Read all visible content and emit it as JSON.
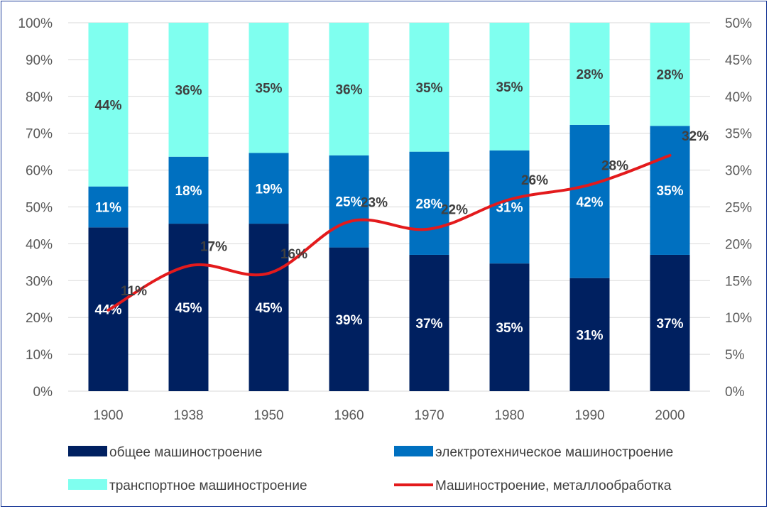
{
  "chart_data": {
    "type": "bar",
    "stacked": true,
    "normalized": true,
    "categories": [
      "1900",
      "1938",
      "1950",
      "1960",
      "1970",
      "1980",
      "1990",
      "2000"
    ],
    "series": [
      {
        "name": "общее машиностроение",
        "color": "#002060",
        "label_color": "#FFFFFF",
        "values": [
          44,
          45,
          45,
          39,
          37,
          35,
          31,
          37
        ]
      },
      {
        "name": "электротехническое машиностроение",
        "color": "#0070C0",
        "label_color": "#FFFFFF",
        "values": [
          11,
          18,
          19,
          25,
          28,
          31,
          42,
          35
        ]
      },
      {
        "name": "транспортное машиностроение",
        "color": "#7FFFEF",
        "label_color": "#404040",
        "values": [
          44,
          36,
          35,
          36,
          35,
          35,
          28,
          28
        ]
      }
    ],
    "line_series": {
      "name": "Машиностроение, металлообработка",
      "axis": "right",
      "color": "#E31A1C",
      "values": [
        11,
        17,
        16,
        23,
        22,
        26,
        28,
        32
      ]
    },
    "y_left": {
      "ylim": [
        0,
        100
      ],
      "ticks": [
        "0%",
        "10%",
        "20%",
        "30%",
        "40%",
        "50%",
        "60%",
        "70%",
        "80%",
        "90%",
        "100%"
      ]
    },
    "y_right": {
      "ylim": [
        0,
        50
      ],
      "ticks": [
        "0%",
        "5%",
        "10%",
        "15%",
        "20%",
        "25%",
        "30%",
        "35%",
        "40%",
        "45%",
        "50%"
      ]
    },
    "grid": true,
    "legend_position": "bottom",
    "legend": [
      {
        "label": "общее машиностроение",
        "kind": "box",
        "color": "#002060"
      },
      {
        "label": "электротехническое машиностроение",
        "kind": "box",
        "color": "#0070C0"
      },
      {
        "label": "транспортное машиностроение",
        "kind": "box",
        "color": "#7FFFEF"
      },
      {
        "label": "Машиностроение, металлообработка",
        "kind": "line",
        "color": "#E31A1C"
      }
    ]
  }
}
